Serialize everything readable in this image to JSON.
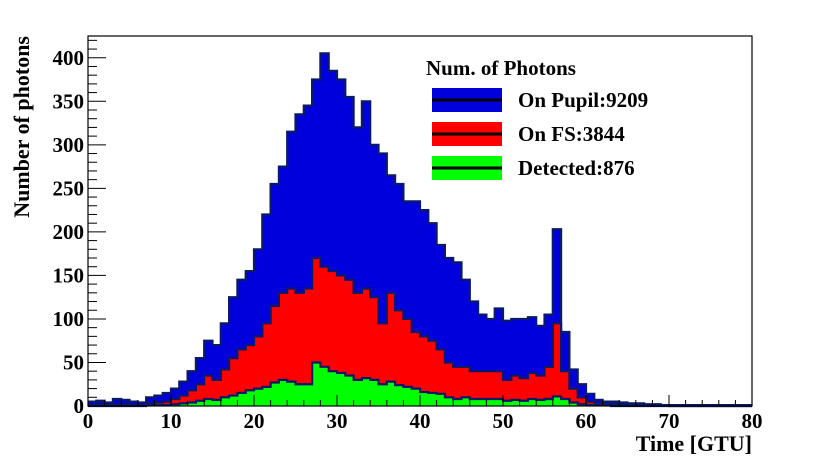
{
  "chart_data": {
    "type": "area",
    "xlabel": "Time [GTU]",
    "ylabel": "Number of photons",
    "xlim": [
      0,
      80
    ],
    "ylim": [
      0,
      425
    ],
    "x_ticks": [
      0,
      10,
      20,
      30,
      40,
      50,
      60,
      70,
      80
    ],
    "y_ticks": [
      0,
      50,
      100,
      150,
      200,
      250,
      300,
      350,
      400
    ],
    "bin_width": 1,
    "grid": false,
    "legend": {
      "title": "Num. of Photons",
      "position": "top-right",
      "entries": [
        {
          "label": "On Pupil:9209",
          "color": "#0000dd"
        },
        {
          "label": "On FS:3844",
          "color": "#ff0000"
        },
        {
          "label": "Detected:876",
          "color": "#00ff00"
        }
      ]
    },
    "series": [
      {
        "name": "On Pupil:9209",
        "color": "#0000dd",
        "values": [
          5,
          6,
          4,
          8,
          7,
          5,
          4,
          10,
          12,
          15,
          20,
          28,
          40,
          55,
          75,
          70,
          95,
          125,
          145,
          155,
          180,
          220,
          255,
          275,
          315,
          335,
          345,
          375,
          405,
          385,
          375,
          355,
          320,
          350,
          300,
          290,
          265,
          255,
          235,
          235,
          225,
          210,
          185,
          170,
          165,
          145,
          120,
          105,
          100,
          112,
          98,
          100,
          100,
          102,
          92,
          105,
          203,
          85,
          42,
          25,
          14,
          7,
          5,
          5,
          4,
          3,
          3,
          2,
          2,
          1,
          1,
          1,
          1,
          1,
          1,
          1,
          1,
          1,
          1,
          1
        ]
      },
      {
        "name": "On FS:3844",
        "color": "#ff0000",
        "values": [
          1,
          2,
          1,
          2,
          2,
          1,
          1,
          3,
          4,
          5,
          8,
          12,
          18,
          25,
          35,
          30,
          42,
          55,
          65,
          70,
          80,
          95,
          115,
          130,
          135,
          130,
          135,
          170,
          160,
          155,
          150,
          145,
          130,
          135,
          125,
          95,
          130,
          110,
          100,
          85,
          80,
          75,
          65,
          50,
          45,
          45,
          40,
          40,
          40,
          40,
          30,
          35,
          32,
          38,
          35,
          45,
          95,
          40,
          20,
          10,
          5,
          3,
          2,
          2,
          1,
          1,
          1,
          1,
          1,
          1,
          0,
          0,
          0,
          0,
          0,
          0,
          0,
          0,
          0,
          0
        ]
      },
      {
        "name": "Detected:876",
        "color": "#00ff00",
        "values": [
          0,
          0,
          0,
          0,
          0,
          0,
          0,
          1,
          1,
          1,
          2,
          3,
          4,
          6,
          8,
          7,
          10,
          12,
          15,
          18,
          20,
          22,
          27,
          30,
          28,
          25,
          25,
          50,
          45,
          40,
          38,
          35,
          30,
          32,
          30,
          25,
          28,
          24,
          22,
          20,
          16,
          15,
          14,
          10,
          8,
          10,
          8,
          8,
          8,
          8,
          6,
          7,
          6,
          8,
          7,
          8,
          11,
          8,
          4,
          2,
          1,
          1,
          1,
          0,
          0,
          0,
          0,
          0,
          0,
          0,
          0,
          0,
          0,
          0,
          0,
          0,
          0,
          0,
          0,
          0
        ]
      }
    ]
  }
}
